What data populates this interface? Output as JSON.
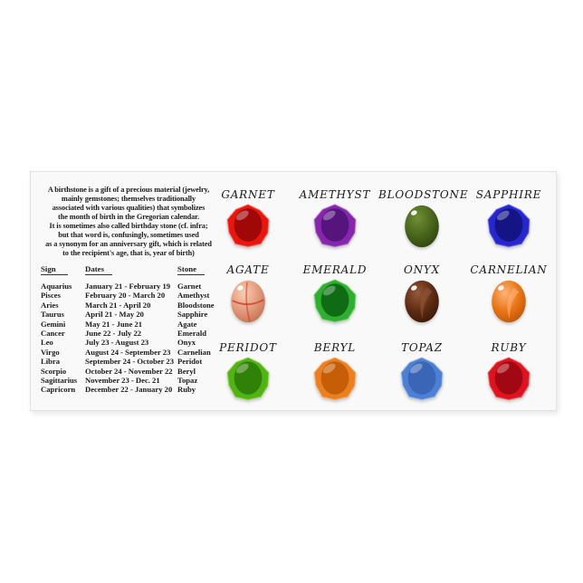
{
  "card": {
    "intro_lines": [
      "A birthstone is a gift of a precious material (jewelry,",
      "mainly gemstones; themselves traditionally",
      "associated with various qualities) that symbolizes",
      "the month of birth in the Gregorian calendar.",
      "It is sometimes also called birthday stone (cf. infra;",
      "but that word is, confusingly, sometimes used",
      "as a synonym for an anniversary gift, which is related",
      "to the recipient's age, that is, year of birth)"
    ],
    "table": {
      "headers": [
        "Sign",
        "Dates",
        "Stone"
      ],
      "rows": [
        {
          "sign": "Aquarius",
          "dates": "January 21 - February 19",
          "stone": "Garnet"
        },
        {
          "sign": "Pisces",
          "dates": "February 20 - March 20",
          "stone": "Amethyst"
        },
        {
          "sign": "Aries",
          "dates": "March 21 - April 20",
          "stone": "Bloodstone"
        },
        {
          "sign": "Taurus",
          "dates": "April 21 - May 20",
          "stone": "Sapphire"
        },
        {
          "sign": "Gemini",
          "dates": "May 21 - June 21",
          "stone": "Agate"
        },
        {
          "sign": "Cancer",
          "dates": "June 22 - July 22",
          "stone": "Emerald"
        },
        {
          "sign": "Leo",
          "dates": "July 23 - August 23",
          "stone": "Onyx"
        },
        {
          "sign": "Virgo",
          "dates": "August 24 - September 23",
          "stone": "Carnelian"
        },
        {
          "sign": "Libra",
          "dates": "September 24 - October 23",
          "stone": "Peridot"
        },
        {
          "sign": "Scorpio",
          "dates": "October 24 - November 22",
          "stone": "Beryl"
        },
        {
          "sign": "Sagittarius",
          "dates": "November 23 - Dec. 21",
          "stone": "Topaz"
        },
        {
          "sign": "Capricorn",
          "dates": "December 22 - January 20",
          "stone": "Ruby"
        }
      ]
    },
    "gems": [
      {
        "label": "GARNET",
        "shape": "faceted",
        "base": "#e8160e",
        "dark": "#990808",
        "light": "#ff7d6e"
      },
      {
        "label": "AMETHYST",
        "shape": "faceted",
        "base": "#8526ad",
        "dark": "#531278",
        "light": "#b86ad1"
      },
      {
        "label": "BLOODSTONE",
        "shape": "oval",
        "base": "#4a661c",
        "dark": "#2c430e",
        "light": "#6e8f33"
      },
      {
        "label": "SAPPHIRE",
        "shape": "faceted",
        "base": "#2626cf",
        "dark": "#12127e",
        "light": "#6a6af5"
      },
      {
        "label": "AGATE",
        "shape": "oval",
        "base": "#e49a7c",
        "dark": "#c2704f",
        "light": "#f7cdb4",
        "bands": "#c63b28"
      },
      {
        "label": "EMERALD",
        "shape": "faceted",
        "base": "#2fae2f",
        "dark": "#0d6614",
        "light": "#72d86f"
      },
      {
        "label": "ONYX",
        "shape": "oval",
        "base": "#5e2c13",
        "dark": "#3a1706",
        "light": "#96593a",
        "swoosh": true
      },
      {
        "label": "CARNELIAN",
        "shape": "oval",
        "base": "#e87517",
        "dark": "#bf5407",
        "light": "#ffb477",
        "swoosh": true
      },
      {
        "label": "PERIDOT",
        "shape": "faceted",
        "base": "#52b315",
        "dark": "#2e7d06",
        "light": "#93dd52"
      },
      {
        "label": "BERYL",
        "shape": "faceted",
        "base": "#ea8022",
        "dark": "#c25b06",
        "light": "#ffb877"
      },
      {
        "label": "TOPAZ",
        "shape": "faceted",
        "base": "#4d80d4",
        "dark": "#3a64b4",
        "light": "#a6c4f0"
      },
      {
        "label": "RUBY",
        "shape": "faceted",
        "base": "#dd1420",
        "dark": "#9c0812",
        "light": "#ff6a6a"
      }
    ]
  }
}
